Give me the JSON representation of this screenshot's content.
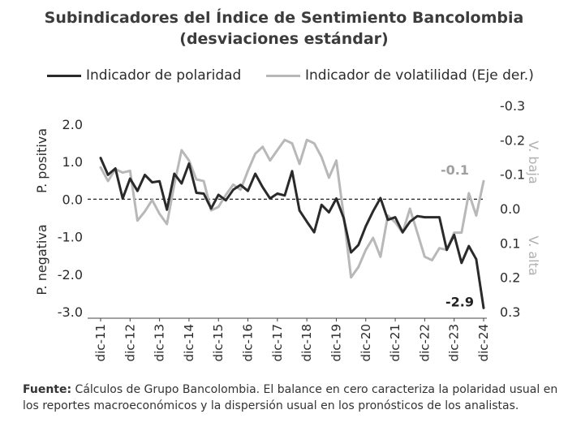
{
  "chart_data": {
    "type": "line",
    "title": "Subindicadores del Índice de Sentimiento Bancolombia",
    "subtitle": "(desviaciones estándar)",
    "x_ticks": [
      "dic-11",
      "dic-12",
      "dic-13",
      "dic-14",
      "dic-15",
      "dic-16",
      "dic-17",
      "dic-18",
      "dic-19",
      "dic-20",
      "dic-21",
      "dic-22",
      "dic-23",
      "dic-24"
    ],
    "x_range": [
      "2011-12",
      "2024-12"
    ],
    "y_left": {
      "range": [
        -3.0,
        2.0
      ],
      "ticks": [
        "2.0",
        "1.0",
        "0.0",
        "-1.0",
        "-2.0",
        "-3.0"
      ],
      "label_top": "P. positiva",
      "label_bottom": "P. negativa"
    },
    "y_right": {
      "range": [
        -0.3,
        0.3
      ],
      "inverted": true,
      "ticks": [
        "-0.3",
        "-0.2",
        "-0.1",
        "0.0",
        "0.1",
        "0.2",
        "0.3"
      ],
      "label_top": "V. baja",
      "label_bottom": "V. alta"
    },
    "series": [
      {
        "name": "Indicador de polaridad",
        "axis": "left",
        "color": "#2a2a2a",
        "points": [
          [
            "2011-12",
            1.1
          ],
          [
            "2012-03",
            0.65
          ],
          [
            "2012-06",
            0.82
          ],
          [
            "2012-09",
            0.02
          ],
          [
            "2012-12",
            0.55
          ],
          [
            "2013-03",
            0.22
          ],
          [
            "2013-06",
            0.65
          ],
          [
            "2013-09",
            0.45
          ],
          [
            "2013-12",
            0.48
          ],
          [
            "2014-03",
            -0.28
          ],
          [
            "2014-06",
            0.68
          ],
          [
            "2014-09",
            0.42
          ],
          [
            "2014-12",
            0.95
          ],
          [
            "2015-03",
            0.17
          ],
          [
            "2015-06",
            0.15
          ],
          [
            "2015-09",
            -0.25
          ],
          [
            "2015-12",
            0.12
          ],
          [
            "2016-03",
            -0.03
          ],
          [
            "2016-06",
            0.25
          ],
          [
            "2016-09",
            0.38
          ],
          [
            "2016-12",
            0.22
          ],
          [
            "2017-03",
            0.68
          ],
          [
            "2017-06",
            0.32
          ],
          [
            "2017-09",
            0.02
          ],
          [
            "2017-12",
            0.15
          ],
          [
            "2018-03",
            0.1
          ],
          [
            "2018-06",
            0.75
          ],
          [
            "2018-09",
            -0.3
          ],
          [
            "2018-12",
            -0.6
          ],
          [
            "2019-03",
            -0.88
          ],
          [
            "2019-06",
            -0.15
          ],
          [
            "2019-09",
            -0.35
          ],
          [
            "2019-12",
            0.02
          ],
          [
            "2020-03",
            -0.5
          ],
          [
            "2020-06",
            -1.42
          ],
          [
            "2020-09",
            -1.22
          ],
          [
            "2020-12",
            -0.72
          ],
          [
            "2021-03",
            -0.32
          ],
          [
            "2021-06",
            0.03
          ],
          [
            "2021-09",
            -0.55
          ],
          [
            "2021-12",
            -0.48
          ],
          [
            "2022-03",
            -0.88
          ],
          [
            "2022-06",
            -0.6
          ],
          [
            "2022-09",
            -0.45
          ],
          [
            "2022-12",
            -0.48
          ],
          [
            "2023-03",
            -0.48
          ],
          [
            "2023-06",
            -0.48
          ],
          [
            "2023-09",
            -1.35
          ],
          [
            "2023-12",
            -0.95
          ],
          [
            "2024-03",
            -1.7
          ],
          [
            "2024-06",
            -1.25
          ],
          [
            "2024-09",
            -1.6
          ],
          [
            "2024-12",
            -2.9
          ]
        ],
        "end_label": "-2.9"
      },
      {
        "name": "Indicador de volatilidad (Eje der.)",
        "axis": "right",
        "color": "#b8b8b8",
        "points": [
          [
            "2011-12",
            -0.12
          ],
          [
            "2012-03",
            -0.08
          ],
          [
            "2012-06",
            -0.115
          ],
          [
            "2012-09",
            -0.105
          ],
          [
            "2012-12",
            -0.11
          ],
          [
            "2013-03",
            0.035
          ],
          [
            "2013-06",
            0.008
          ],
          [
            "2013-09",
            -0.025
          ],
          [
            "2013-12",
            0.015
          ],
          [
            "2014-03",
            0.045
          ],
          [
            "2014-06",
            -0.07
          ],
          [
            "2014-09",
            -0.17
          ],
          [
            "2014-12",
            -0.14
          ],
          [
            "2015-03",
            -0.085
          ],
          [
            "2015-06",
            -0.08
          ],
          [
            "2015-09",
            0.005
          ],
          [
            "2015-12",
            -0.005
          ],
          [
            "2016-03",
            -0.04
          ],
          [
            "2016-06",
            -0.07
          ],
          [
            "2016-09",
            -0.055
          ],
          [
            "2016-12",
            -0.11
          ],
          [
            "2017-03",
            -0.16
          ],
          [
            "2017-06",
            -0.18
          ],
          [
            "2017-09",
            -0.14
          ],
          [
            "2017-12",
            -0.17
          ],
          [
            "2018-03",
            -0.2
          ],
          [
            "2018-06",
            -0.19
          ],
          [
            "2018-09",
            -0.13
          ],
          [
            "2018-12",
            -0.2
          ],
          [
            "2019-03",
            -0.19
          ],
          [
            "2019-06",
            -0.15
          ],
          [
            "2019-09",
            -0.09
          ],
          [
            "2019-12",
            -0.14
          ],
          [
            "2020-03",
            0.02
          ],
          [
            "2020-06",
            0.2
          ],
          [
            "2020-09",
            0.17
          ],
          [
            "2020-12",
            0.12
          ],
          [
            "2021-03",
            0.085
          ],
          [
            "2021-06",
            0.14
          ],
          [
            "2021-09",
            0.02
          ],
          [
            "2021-12",
            0.04
          ],
          [
            "2022-03",
            0.07
          ],
          [
            "2022-06",
            -0.0
          ],
          [
            "2022-09",
            0.07
          ],
          [
            "2022-12",
            0.14
          ],
          [
            "2023-03",
            0.15
          ],
          [
            "2023-06",
            0.115
          ],
          [
            "2023-09",
            0.12
          ],
          [
            "2023-12",
            0.07
          ],
          [
            "2024-03",
            0.07
          ],
          [
            "2024-06",
            -0.045
          ],
          [
            "2024-09",
            0.02
          ],
          [
            "2024-12",
            -0.08
          ]
        ],
        "end_label": "-0.1"
      }
    ],
    "zero_line": "dashed",
    "legend_position": "top"
  },
  "source": {
    "label": "Fuente:",
    "text": "Cálculos de Grupo Bancolombia. El balance en cero caracteriza la polaridad usual en los reportes macroeconómicos y la dispersión usual en los pronósticos de los analistas."
  },
  "colors": {
    "polarity": "#2a2a2a",
    "volatility": "#b8b8b8",
    "title": "#3c3c3c"
  }
}
